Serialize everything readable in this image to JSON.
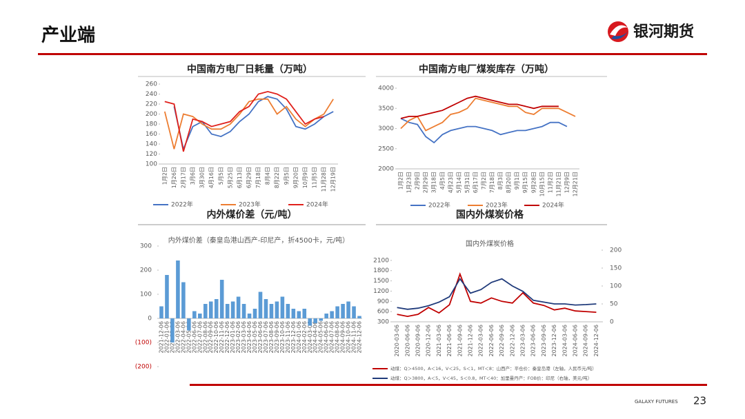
{
  "header": {
    "title": "产业端",
    "logo": "银河期货"
  },
  "footer": {
    "brand": "GALAXY FUTURES",
    "page": "23"
  },
  "chart_data": [
    {
      "type": "line",
      "title": "中国南方电厂日耗量（万吨）",
      "categories": [
        "1月2日",
        "1月26日",
        "2月17日",
        "3月6日",
        "3月30日",
        "4月16日",
        "5月5日",
        "5月25日",
        "6月13日",
        "6月29日",
        "7月18日",
        "8月4日",
        "8月22日",
        "9月5日",
        "9月20日",
        "10月9日",
        "11月5日",
        "11月28日",
        "12月19日"
      ],
      "series": [
        {
          "name": "2022年",
          "color": "#4472c4",
          "values": [
            null,
            215,
            130,
            175,
            185,
            160,
            155,
            165,
            185,
            200,
            225,
            235,
            230,
            210,
            175,
            170,
            180,
            195,
            205
          ]
        },
        {
          "name": "2023年",
          "color": "#ed7d31",
          "values": [
            205,
            130,
            200,
            195,
            180,
            170,
            170,
            180,
            200,
            225,
            230,
            230,
            200,
            215,
            190,
            175,
            190,
            200,
            230
          ]
        },
        {
          "name": "2024年",
          "color": "#e0201b",
          "values": [
            225,
            220,
            125,
            190,
            185,
            175,
            180,
            185,
            205,
            215,
            240,
            245,
            240,
            230,
            205,
            180,
            190,
            195,
            null
          ]
        }
      ],
      "ylim": [
        100,
        260
      ],
      "yticks": [
        100,
        120,
        140,
        160,
        180,
        200,
        220,
        240,
        260
      ],
      "legend": "bottom"
    },
    {
      "type": "line",
      "title": "中国南方电厂煤炭库存（万吨）",
      "categories": [
        "1月2日",
        "1月23日",
        "2月9日",
        "2月29日",
        "3月18日",
        "4月5日",
        "4月23日",
        "5月14日",
        "5月31日",
        "6月17日",
        "7月2日",
        "7月18日",
        "8月3日",
        "8月20日",
        "9月1日",
        "9月15日",
        "9月28日",
        "10月15日",
        "11月2日",
        "11月21日",
        "12月9日",
        "12月21日"
      ],
      "series": [
        {
          "name": "2022年",
          "color": "#4472c4",
          "values": [
            3250,
            3150,
            3100,
            2800,
            2650,
            2850,
            2950,
            3000,
            3050,
            3050,
            3000,
            2950,
            2850,
            2900,
            2950,
            2950,
            3000,
            3050,
            3150,
            3150,
            3050,
            null
          ]
        },
        {
          "name": "2023年",
          "color": "#ed7d31",
          "values": [
            3000,
            3200,
            3300,
            2950,
            3050,
            3150,
            3350,
            3400,
            3500,
            3750,
            3700,
            3650,
            3600,
            3550,
            3550,
            3400,
            3350,
            3500,
            3500,
            3500,
            3400,
            3300
          ]
        },
        {
          "name": "2024年",
          "color": "#c00000",
          "values": [
            3250,
            3300,
            3300,
            3350,
            3400,
            3450,
            3550,
            3650,
            3750,
            3800,
            3750,
            3700,
            3650,
            3600,
            3600,
            3550,
            3500,
            3550,
            3550,
            3550,
            null,
            null
          ]
        }
      ],
      "ylim": [
        2000,
        4000
      ],
      "yticks": [
        2000,
        2500,
        3000,
        3500,
        4000
      ],
      "legend": "bottom"
    },
    {
      "type": "bar",
      "heading": "内外煤价差（元/吨）",
      "title": "内外煤价差（秦皇岛港山西产-印尼产，折4500卡，元/吨）",
      "categories": [
        "2021-12-06",
        "2022-01-06",
        "2022-02-06",
        "2022-03-06",
        "2022-04-06",
        "2022-05-06",
        "2022-06-06",
        "2022-07-06",
        "2022-08-06",
        "2022-09-06",
        "2022-10-06",
        "2022-11-06",
        "2022-12-06",
        "2023-01-06",
        "2023-02-06",
        "2023-03-06",
        "2023-04-06",
        "2023-05-06",
        "2023-06-06",
        "2023-07-06",
        "2023-08-06",
        "2023-09-06",
        "2023-10-06",
        "2023-11-06",
        "2023-12-06",
        "2024-01-06",
        "2024-02-06",
        "2024-03-06",
        "2024-04-06",
        "2024-05-06",
        "2024-06-06",
        "2024-07-06",
        "2024-08-06",
        "2024-09-06",
        "2024-10-06",
        "2024-11-06",
        "2024-12-06"
      ],
      "values": [
        50,
        180,
        -100,
        240,
        150,
        -50,
        30,
        20,
        60,
        70,
        80,
        160,
        60,
        70,
        90,
        60,
        20,
        40,
        110,
        80,
        60,
        70,
        90,
        60,
        40,
        30,
        40,
        -30,
        -20,
        -10,
        20,
        30,
        50,
        60,
        70,
        50,
        10
      ],
      "color": "#5b9bd5",
      "negative_tick_color": "#c00000",
      "ylim": [
        -200,
        300
      ],
      "yticks": [
        {
          "value": -200,
          "label": "(200)"
        },
        {
          "value": -100,
          "label": "(100)"
        },
        0,
        100,
        200,
        300
      ]
    },
    {
      "type": "line",
      "heading": "国内外煤炭价格",
      "title": "国内外煤炭价格",
      "categories": [
        "2020-03-06",
        "2020-06-06",
        "2020-09-06",
        "2020-12-06",
        "2021-03-06",
        "2021-06-06",
        "2021-09-06",
        "2021-12-06",
        "2022-03-06",
        "2022-06-06",
        "2022-09-06",
        "2022-12-06",
        "2023-03-06",
        "2023-06-06",
        "2023-09-06",
        "2023-12-06",
        "2024-03-06",
        "2024-06-06",
        "2024-09-06",
        "2024-12-06"
      ],
      "series": [
        {
          "name": "动煤：Q＞4500，A＜16，V＜25，S＜1，MT＜8：山西产：平仓价：秦皇岛港（左轴，人民币元/吨）",
          "color": "#c00000",
          "values": [
            520,
            460,
            520,
            720,
            560,
            800,
            1700,
            900,
            850,
            1000,
            900,
            850,
            1150,
            850,
            780,
            650,
            700,
            620,
            600,
            580
          ]
        },
        {
          "name": "动煤：Q＞3800，A＜5，V＜45，S＜0.8，MT＜40：加里曼丹产：FOB价：印尼（右轴，美元/吨）",
          "color": "#1f3a7a",
          "axis": "y2",
          "values": [
            40,
            35,
            38,
            45,
            55,
            70,
            120,
            80,
            90,
            110,
            120,
            100,
            85,
            60,
            55,
            50,
            50,
            47,
            48,
            50
          ]
        }
      ],
      "ylim": [
        300,
        2400
      ],
      "yticks": [
        300,
        600,
        900,
        1200,
        1500,
        1800,
        2100
      ],
      "y2lim": [
        0,
        200
      ],
      "y2ticks": [
        0,
        50,
        100,
        150,
        200
      ],
      "legend": "bottom"
    }
  ]
}
